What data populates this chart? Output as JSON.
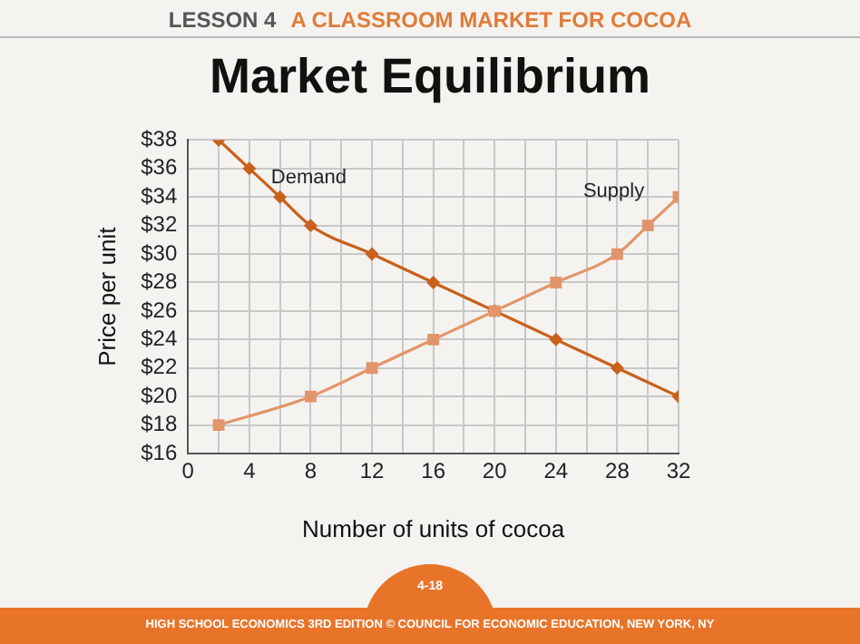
{
  "chart_data": {
    "type": "line",
    "title": "Market Equilibrium",
    "xlabel": "Number of units of cocoa",
    "ylabel": "Price per unit",
    "series": [
      {
        "name": "Demand",
        "color": "#c9601c",
        "marker": "diamond",
        "x": [
          2,
          4,
          6,
          8,
          12,
          16,
          20,
          24,
          28,
          32
        ],
        "values": [
          38,
          36,
          34,
          32,
          30,
          28,
          26,
          24,
          22,
          20
        ]
      },
      {
        "name": "Supply",
        "color": "#e2956a",
        "marker": "square",
        "x": [
          2,
          8,
          12,
          16,
          20,
          24,
          28,
          30,
          32
        ],
        "values": [
          18,
          20,
          22,
          24,
          26,
          28,
          30,
          32,
          34
        ]
      }
    ],
    "xlim": [
      0,
      32
    ],
    "xticks": [
      0,
      {
        "value": 2,
        "label": null
      },
      4,
      {
        "value": 6,
        "label": null
      },
      8,
      {
        "value": 10,
        "label": null
      },
      12,
      {
        "value": 14,
        "label": null
      },
      16,
      {
        "value": 18,
        "label": null
      },
      20,
      {
        "value": 22,
        "label": null
      },
      24,
      {
        "value": 26,
        "label": null
      },
      28,
      {
        "value": 30,
        "label": null
      },
      32
    ],
    "ylim": [
      16,
      38
    ],
    "yticks": [
      {
        "value": 16,
        "label": "$16"
      },
      {
        "value": 18,
        "label": "$18"
      },
      {
        "value": 20,
        "label": "$20"
      },
      {
        "value": 22,
        "label": "$22"
      },
      {
        "value": 24,
        "label": "$24"
      },
      {
        "value": 26,
        "label": "$26"
      },
      {
        "value": 28,
        "label": "$28"
      },
      {
        "value": 30,
        "label": "$30"
      },
      {
        "value": 32,
        "label": "$32"
      },
      {
        "value": 34,
        "label": "$34"
      },
      {
        "value": 36,
        "label": "$36"
      },
      {
        "value": 38,
        "label": "$38"
      }
    ],
    "grid": true,
    "legend": false,
    "annotations": [
      "LESSON 4",
      "A CLASSROOM MARKET FOR COCOA",
      "4-18",
      "HIGH SCHOOL ECONOMICS 3RD EDITION © COUNCIL FOR ECONOMIC EDUCATION, NEW YORK, NY"
    ]
  }
}
